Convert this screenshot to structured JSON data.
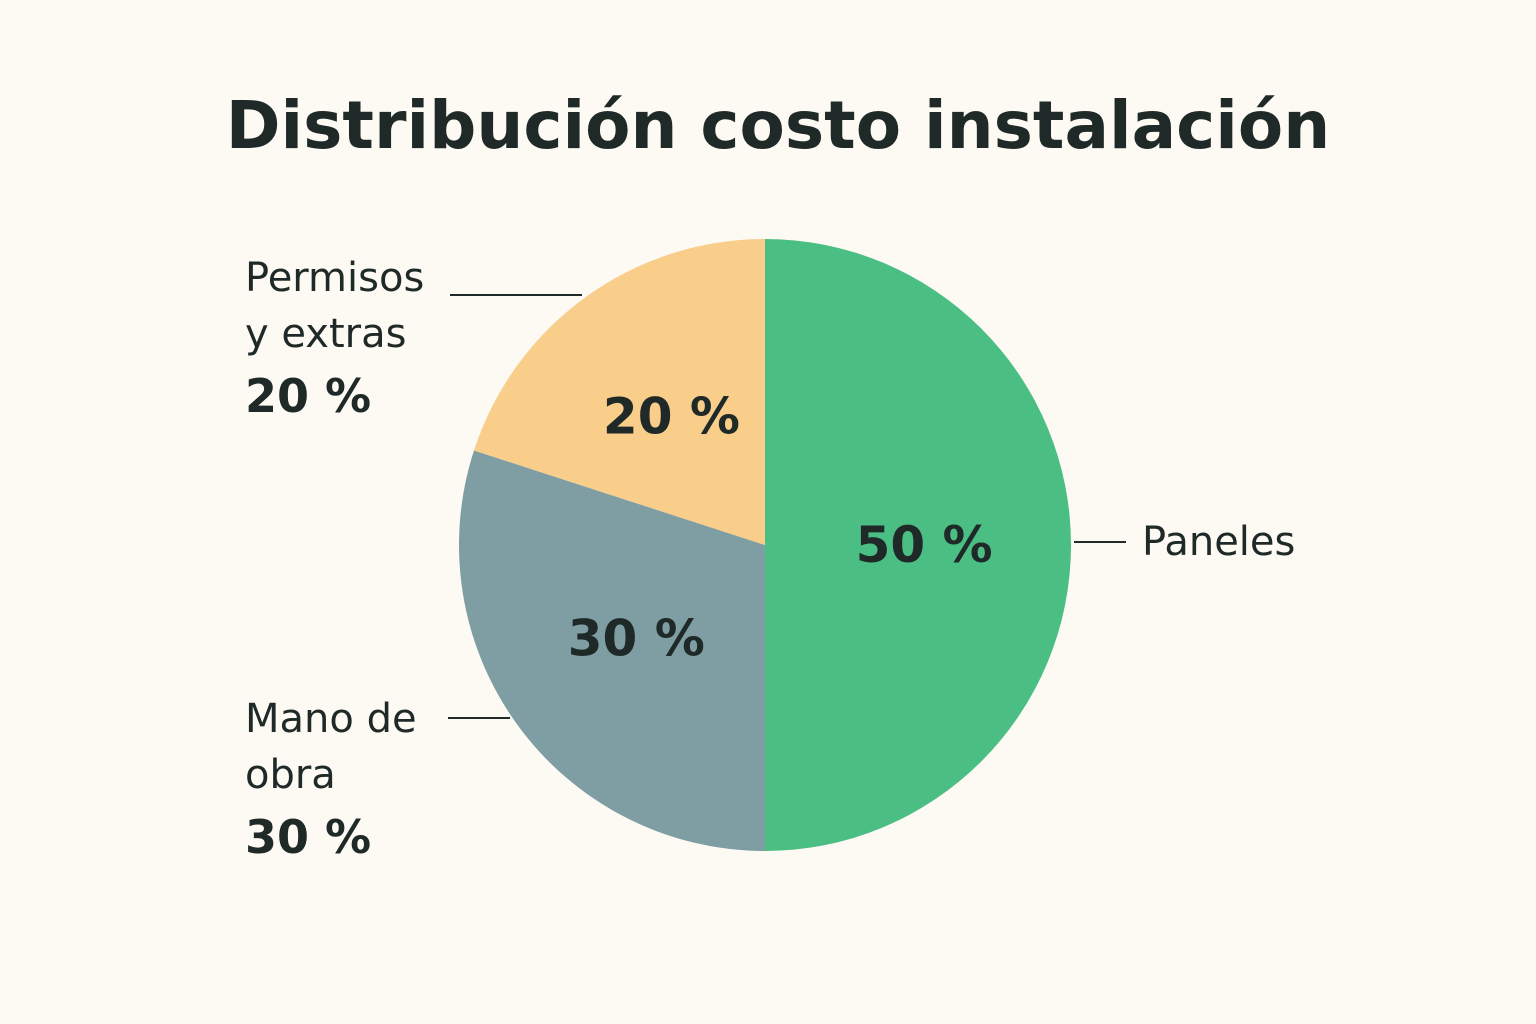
{
  "chart_data": {
    "type": "pie",
    "title": "Distribución costo instalación",
    "slices": [
      {
        "name": "Paneles",
        "label_lines": [
          "Paneles"
        ],
        "value": 50,
        "display": "50 %",
        "external_pct": "",
        "color": "#4bbf83"
      },
      {
        "name": "Mano de obra",
        "label_lines": [
          "Mano de",
          "obra"
        ],
        "value": 30,
        "display": "30 %",
        "external_pct": "30 %",
        "color": "#7f9ea3"
      },
      {
        "name": "Permisos y extras",
        "label_lines": [
          "Permisos",
          "y extras"
        ],
        "value": 20,
        "display": "20 %",
        "external_pct": "20 %",
        "color": "#f9cd8a"
      }
    ],
    "start_angle_deg": 0,
    "direction": "clockwise"
  }
}
